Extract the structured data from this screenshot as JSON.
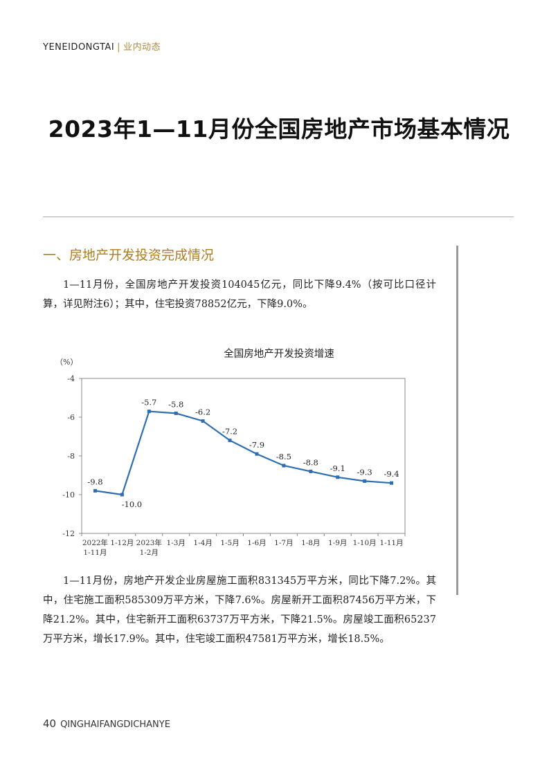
{
  "header": {
    "section_en": "YENEIDONGTAI",
    "separator": "|",
    "section_cn": "业内动态"
  },
  "title": "2023年1—11月份全国房地产市场基本情况",
  "section_heading": "一、房地产开发投资完成情况",
  "paragraphs": [
    "1—11月份，全国房地产开发投资104045亿元，同比下降9.4%（按可比口径计算，详见附注6）；其中，住宅投资78852亿元，下降9.0%。",
    "1—11月份，房地产开发企业房屋施工面积831345万平方米，同比下降7.2%。其中，住宅施工面积585309万平方米，下降7.6%。房屋新开工面积87456万平方米，下降21.2%。其中，住宅新开工面积63737万平方米，下降21.5%。房屋竣工面积65237万平方米，增长17.9%。其中，住宅竣工面积47581万平方米，增长18.5%。"
  ],
  "chart_data": {
    "type": "line",
    "title": "全国房地产开发投资增速",
    "ylabel": "（%）",
    "xlabel": "",
    "ylim": [
      -12,
      -4
    ],
    "yticks": [
      -4,
      -6,
      -8,
      -10,
      -12
    ],
    "categories": [
      [
        "2022年",
        "1-11月"
      ],
      [
        "1-12月"
      ],
      [
        "2023年",
        "1-2月"
      ],
      [
        "1-3月"
      ],
      [
        "1-4月"
      ],
      [
        "1-5月"
      ],
      [
        "1-6月"
      ],
      [
        "1-7月"
      ],
      [
        "1-8月"
      ],
      [
        "1-9月"
      ],
      [
        "1-10月"
      ],
      [
        "1-11月"
      ]
    ],
    "values": [
      -9.8,
      -10.0,
      -5.7,
      -5.8,
      -6.2,
      -7.2,
      -7.9,
      -8.5,
      -8.8,
      -9.1,
      -9.3,
      -9.4
    ],
    "data_labels": [
      "-9.8",
      "-10.0",
      "-5.7",
      "-5.8",
      "-6.2",
      "-7.2",
      "-7.9",
      "-8.5",
      "-8.8",
      "-9.1",
      "-9.3",
      "-9.4"
    ],
    "grid": false,
    "line_color": "#2e6db4"
  },
  "footer": {
    "page_number": "40",
    "publication": "QINGHAIFANGDICHANYE"
  }
}
